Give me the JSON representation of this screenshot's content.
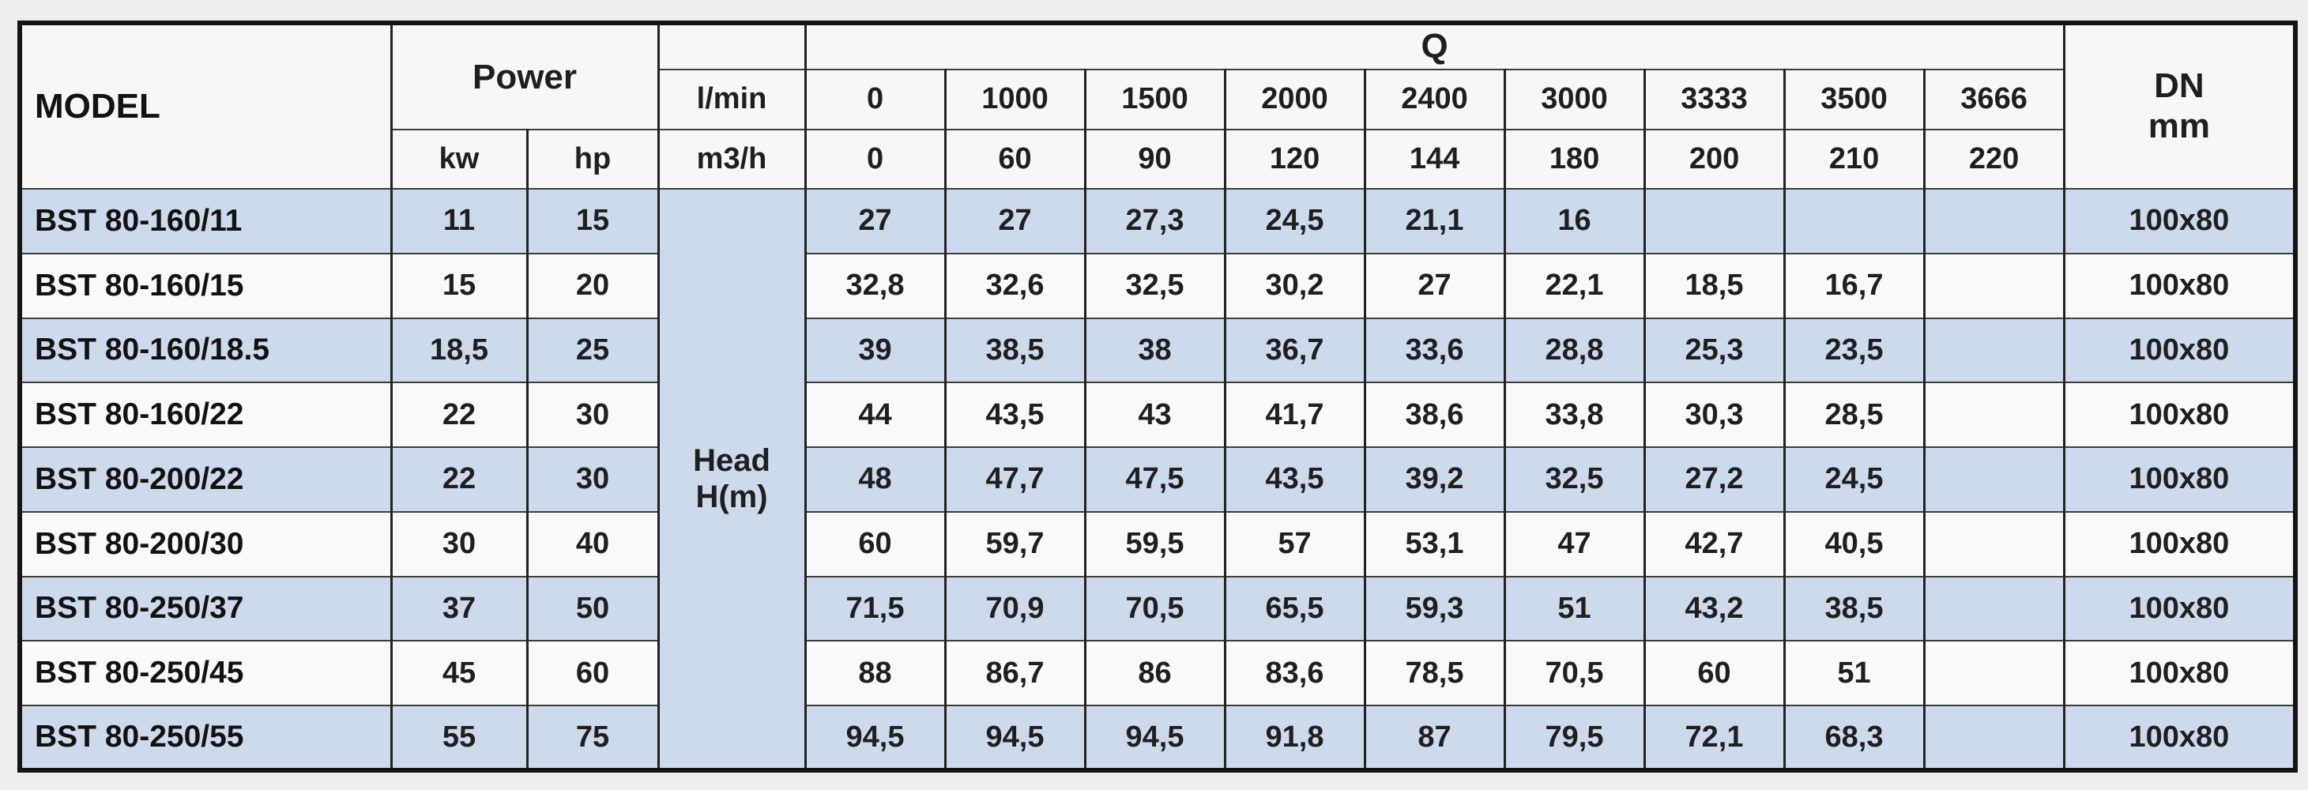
{
  "header": {
    "model_label": "MODEL",
    "power_label": "Power",
    "power_units": [
      "kw",
      "hp"
    ],
    "q_label": "Q",
    "flow_unit_lmin": "l/min",
    "flow_unit_m3h": "m3/h",
    "q_lmin": [
      "0",
      "1000",
      "1500",
      "2000",
      "2400",
      "3000",
      "3333",
      "3500",
      "3666"
    ],
    "q_m3h": [
      "0",
      "60",
      "90",
      "120",
      "144",
      "180",
      "200",
      "210",
      "220"
    ],
    "dn_label": "DN",
    "dn_unit": "mm",
    "head_label": "Head",
    "head_unit": "H(m)"
  },
  "rows": [
    {
      "model": "BST 80-160/11",
      "kw": "11",
      "hp": "15",
      "head": [
        "27",
        "27",
        "27,3",
        "24,5",
        "21,1",
        "16",
        "",
        "",
        ""
      ],
      "dn": "100x80"
    },
    {
      "model": "BST 80-160/15",
      "kw": "15",
      "hp": "20",
      "head": [
        "32,8",
        "32,6",
        "32,5",
        "30,2",
        "27",
        "22,1",
        "18,5",
        "16,7",
        ""
      ],
      "dn": "100x80"
    },
    {
      "model": "BST 80-160/18.5",
      "kw": "18,5",
      "hp": "25",
      "head": [
        "39",
        "38,5",
        "38",
        "36,7",
        "33,6",
        "28,8",
        "25,3",
        "23,5",
        ""
      ],
      "dn": "100x80"
    },
    {
      "model": "BST 80-160/22",
      "kw": "22",
      "hp": "30",
      "head": [
        "44",
        "43,5",
        "43",
        "41,7",
        "38,6",
        "33,8",
        "30,3",
        "28,5",
        ""
      ],
      "dn": "100x80"
    },
    {
      "model": "BST 80-200/22",
      "kw": "22",
      "hp": "30",
      "head": [
        "48",
        "47,7",
        "47,5",
        "43,5",
        "39,2",
        "32,5",
        "27,2",
        "24,5",
        ""
      ],
      "dn": "100x80"
    },
    {
      "model": "BST 80-200/30",
      "kw": "30",
      "hp": "40",
      "head": [
        "60",
        "59,7",
        "59,5",
        "57",
        "53,1",
        "47",
        "42,7",
        "40,5",
        ""
      ],
      "dn": "100x80"
    },
    {
      "model": "BST 80-250/37",
      "kw": "37",
      "hp": "50",
      "head": [
        "71,5",
        "70,9",
        "70,5",
        "65,5",
        "59,3",
        "51",
        "43,2",
        "38,5",
        ""
      ],
      "dn": "100x80"
    },
    {
      "model": "BST 80-250/45",
      "kw": "45",
      "hp": "60",
      "head": [
        "88",
        "86,7",
        "86",
        "83,6",
        "78,5",
        "70,5",
        "60",
        "51",
        ""
      ],
      "dn": "100x80"
    },
    {
      "model": "BST 80-250/55",
      "kw": "55",
      "hp": "75",
      "head": [
        "94,5",
        "94,5",
        "94,5",
        "91,8",
        "87",
        "79,5",
        "72,1",
        "68,3",
        ""
      ],
      "dn": "100x80"
    }
  ],
  "colors": {
    "row_highlight": "#ccdaec",
    "row_plain": "#f9f9f9",
    "border": "#222222",
    "text": "#1f1f1f",
    "page_background": "#eeeeee"
  }
}
